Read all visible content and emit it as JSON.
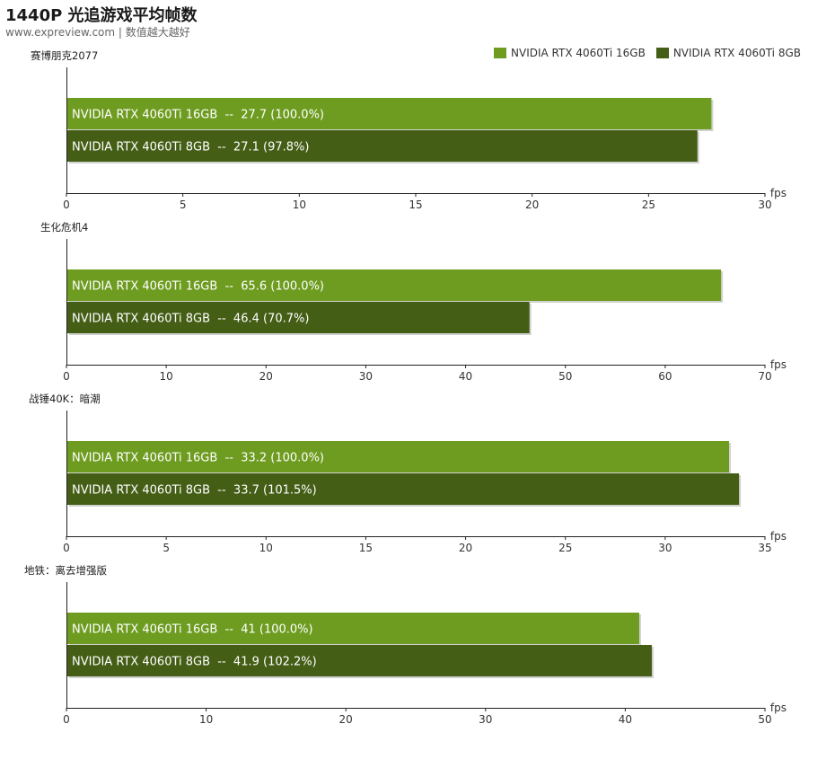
{
  "header": {
    "title": "1440P 光追游戏平均帧数",
    "subtitle": "www.expreview.com | 数值越大越好"
  },
  "colors": {
    "series1": "#6e9c20",
    "series2": "#455e16",
    "axis": "#222222",
    "bar_text": "#ffffff"
  },
  "legend": {
    "placement": "top-right",
    "items": [
      "NVIDIA RTX 4060Ti 16GB",
      "NVIDIA RTX 4060Ti 8GB"
    ]
  },
  "chart_data": [
    {
      "type": "bar",
      "orientation": "horizontal",
      "title": "赛博朋克2077",
      "xlabel": "fps",
      "xlim": [
        0,
        30
      ],
      "xticks": [
        0,
        5,
        10,
        15,
        20,
        25,
        30
      ],
      "bars": [
        {
          "series": "NVIDIA RTX 4060Ti 16GB",
          "value": 27.7,
          "label": "NVIDIA RTX 4060Ti 16GB  --  27.7 (100.0%)"
        },
        {
          "series": "NVIDIA RTX 4060Ti 8GB",
          "value": 27.1,
          "label": "NVIDIA RTX 4060Ti 8GB  --  27.1 (97.8%)"
        }
      ]
    },
    {
      "type": "bar",
      "orientation": "horizontal",
      "title": "生化危机4",
      "xlabel": "fps",
      "xlim": [
        0,
        70
      ],
      "xticks": [
        0,
        10,
        20,
        30,
        40,
        50,
        60,
        70
      ],
      "bars": [
        {
          "series": "NVIDIA RTX 4060Ti 16GB",
          "value": 65.6,
          "label": "NVIDIA RTX 4060Ti 16GB  --  65.6 (100.0%)"
        },
        {
          "series": "NVIDIA RTX 4060Ti 8GB",
          "value": 46.4,
          "label": "NVIDIA RTX 4060Ti 8GB  --  46.4 (70.7%)"
        }
      ]
    },
    {
      "type": "bar",
      "orientation": "horizontal",
      "title": "战锤40K：暗潮",
      "xlabel": "fps",
      "xlim": [
        0,
        35
      ],
      "xticks": [
        0,
        5,
        10,
        15,
        20,
        25,
        30,
        35
      ],
      "bars": [
        {
          "series": "NVIDIA RTX 4060Ti 16GB",
          "value": 33.2,
          "label": "NVIDIA RTX 4060Ti 16GB  --  33.2 (100.0%)"
        },
        {
          "series": "NVIDIA RTX 4060Ti 8GB",
          "value": 33.7,
          "label": "NVIDIA RTX 4060Ti 8GB  --  33.7 (101.5%)"
        }
      ]
    },
    {
      "type": "bar",
      "orientation": "horizontal",
      "title": "地铁：离去增强版",
      "xlabel": "fps",
      "xlim": [
        0,
        50
      ],
      "xticks": [
        0,
        10,
        20,
        30,
        40,
        50
      ],
      "bars": [
        {
          "series": "NVIDIA RTX 4060Ti 16GB",
          "value": 41,
          "label": "NVIDIA RTX 4060Ti 16GB  --  41 (100.0%)"
        },
        {
          "series": "NVIDIA RTX 4060Ti 8GB",
          "value": 41.9,
          "label": "NVIDIA RTX 4060Ti 8GB  --  41.9 (102.2%)"
        }
      ]
    }
  ]
}
